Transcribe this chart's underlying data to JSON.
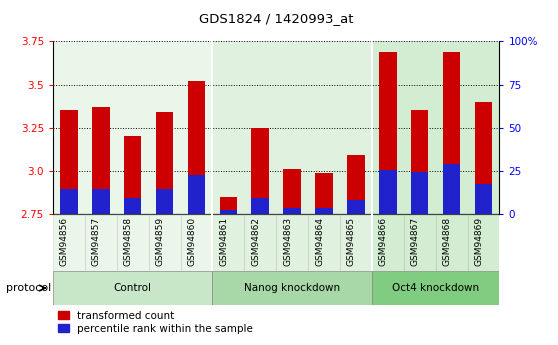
{
  "title": "GDS1824 / 1420993_at",
  "samples": [
    "GSM94856",
    "GSM94857",
    "GSM94858",
    "GSM94859",
    "GSM94860",
    "GSM94861",
    "GSM94862",
    "GSM94863",
    "GSM94864",
    "GSM94865",
    "GSM94866",
    "GSM94867",
    "GSM94868",
    "GSM94869"
  ],
  "bar_values": [
    3.35,
    3.37,
    3.2,
    3.34,
    3.52,
    2.85,
    3.25,
    3.01,
    2.99,
    3.09,
    3.69,
    3.35,
    3.69,
    3.4
  ],
  "percentile_values": [
    2.895,
    2.895,
    2.845,
    2.895,
    2.973,
    2.775,
    2.845,
    2.782,
    2.782,
    2.832,
    3.003,
    2.995,
    3.042,
    2.922
  ],
  "ymin": 2.75,
  "ymax": 3.75,
  "y2min": 0,
  "y2max": 100,
  "yticks": [
    2.75,
    3.0,
    3.25,
    3.5,
    3.75
  ],
  "y2ticks": [
    0,
    25,
    50,
    75,
    100
  ],
  "bar_color": "#cc0000",
  "percentile_color": "#2222cc",
  "bar_width": 0.55,
  "legend_items": [
    "transformed count",
    "percentile rank within the sample"
  ],
  "protocol_label": "protocol",
  "group_spans": [
    {
      "start": 0,
      "end": 4,
      "label": "Control",
      "color": "#c8e6c8"
    },
    {
      "start": 5,
      "end": 9,
      "label": "Nanog knockdown",
      "color": "#a8d8a8"
    },
    {
      "start": 10,
      "end": 13,
      "label": "Oct4 knockdown",
      "color": "#80cc80"
    }
  ],
  "nanog_bg": "#e8f5e8",
  "control_bg": "#e8f5e8",
  "oct4_bg": "#80cc80",
  "sample_bg_control": "#e8f4e8",
  "sample_bg_nanog": "#e0f0e0",
  "sample_bg_oct4": "#78c878"
}
